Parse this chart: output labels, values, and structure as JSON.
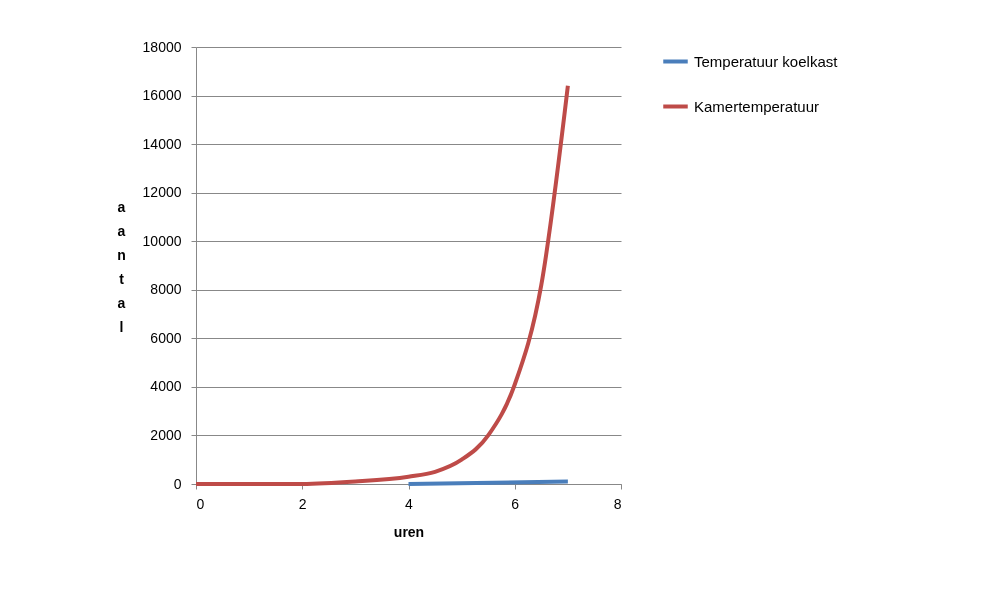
{
  "chart_data": {
    "type": "line",
    "xlabel": "uren",
    "ylabel": "aantal",
    "xlim": [
      0,
      8
    ],
    "xticks": [
      0,
      2,
      4,
      6,
      8
    ],
    "ylim": [
      0,
      18000
    ],
    "yticks": [
      0,
      2000,
      4000,
      6000,
      8000,
      10000,
      12000,
      14000,
      16000,
      18000
    ],
    "grid": "y",
    "legend": "right",
    "marker": "none",
    "line_style": "solid",
    "series": [
      {
        "name": "Temperatuur  koelkast",
        "color": "#4a7ebb",
        "x": [
          4,
          7
        ],
        "values": [
          0,
          100
        ]
      },
      {
        "name": "Kamertemperatuur",
        "color": "#be4b48",
        "x": [
          0,
          2,
          3,
          4,
          4.5,
          5,
          5.5,
          6,
          6.5,
          7
        ],
        "values": [
          0,
          0,
          100,
          300,
          500,
          1000,
          2000,
          4100,
          8200,
          16400
        ]
      }
    ]
  }
}
